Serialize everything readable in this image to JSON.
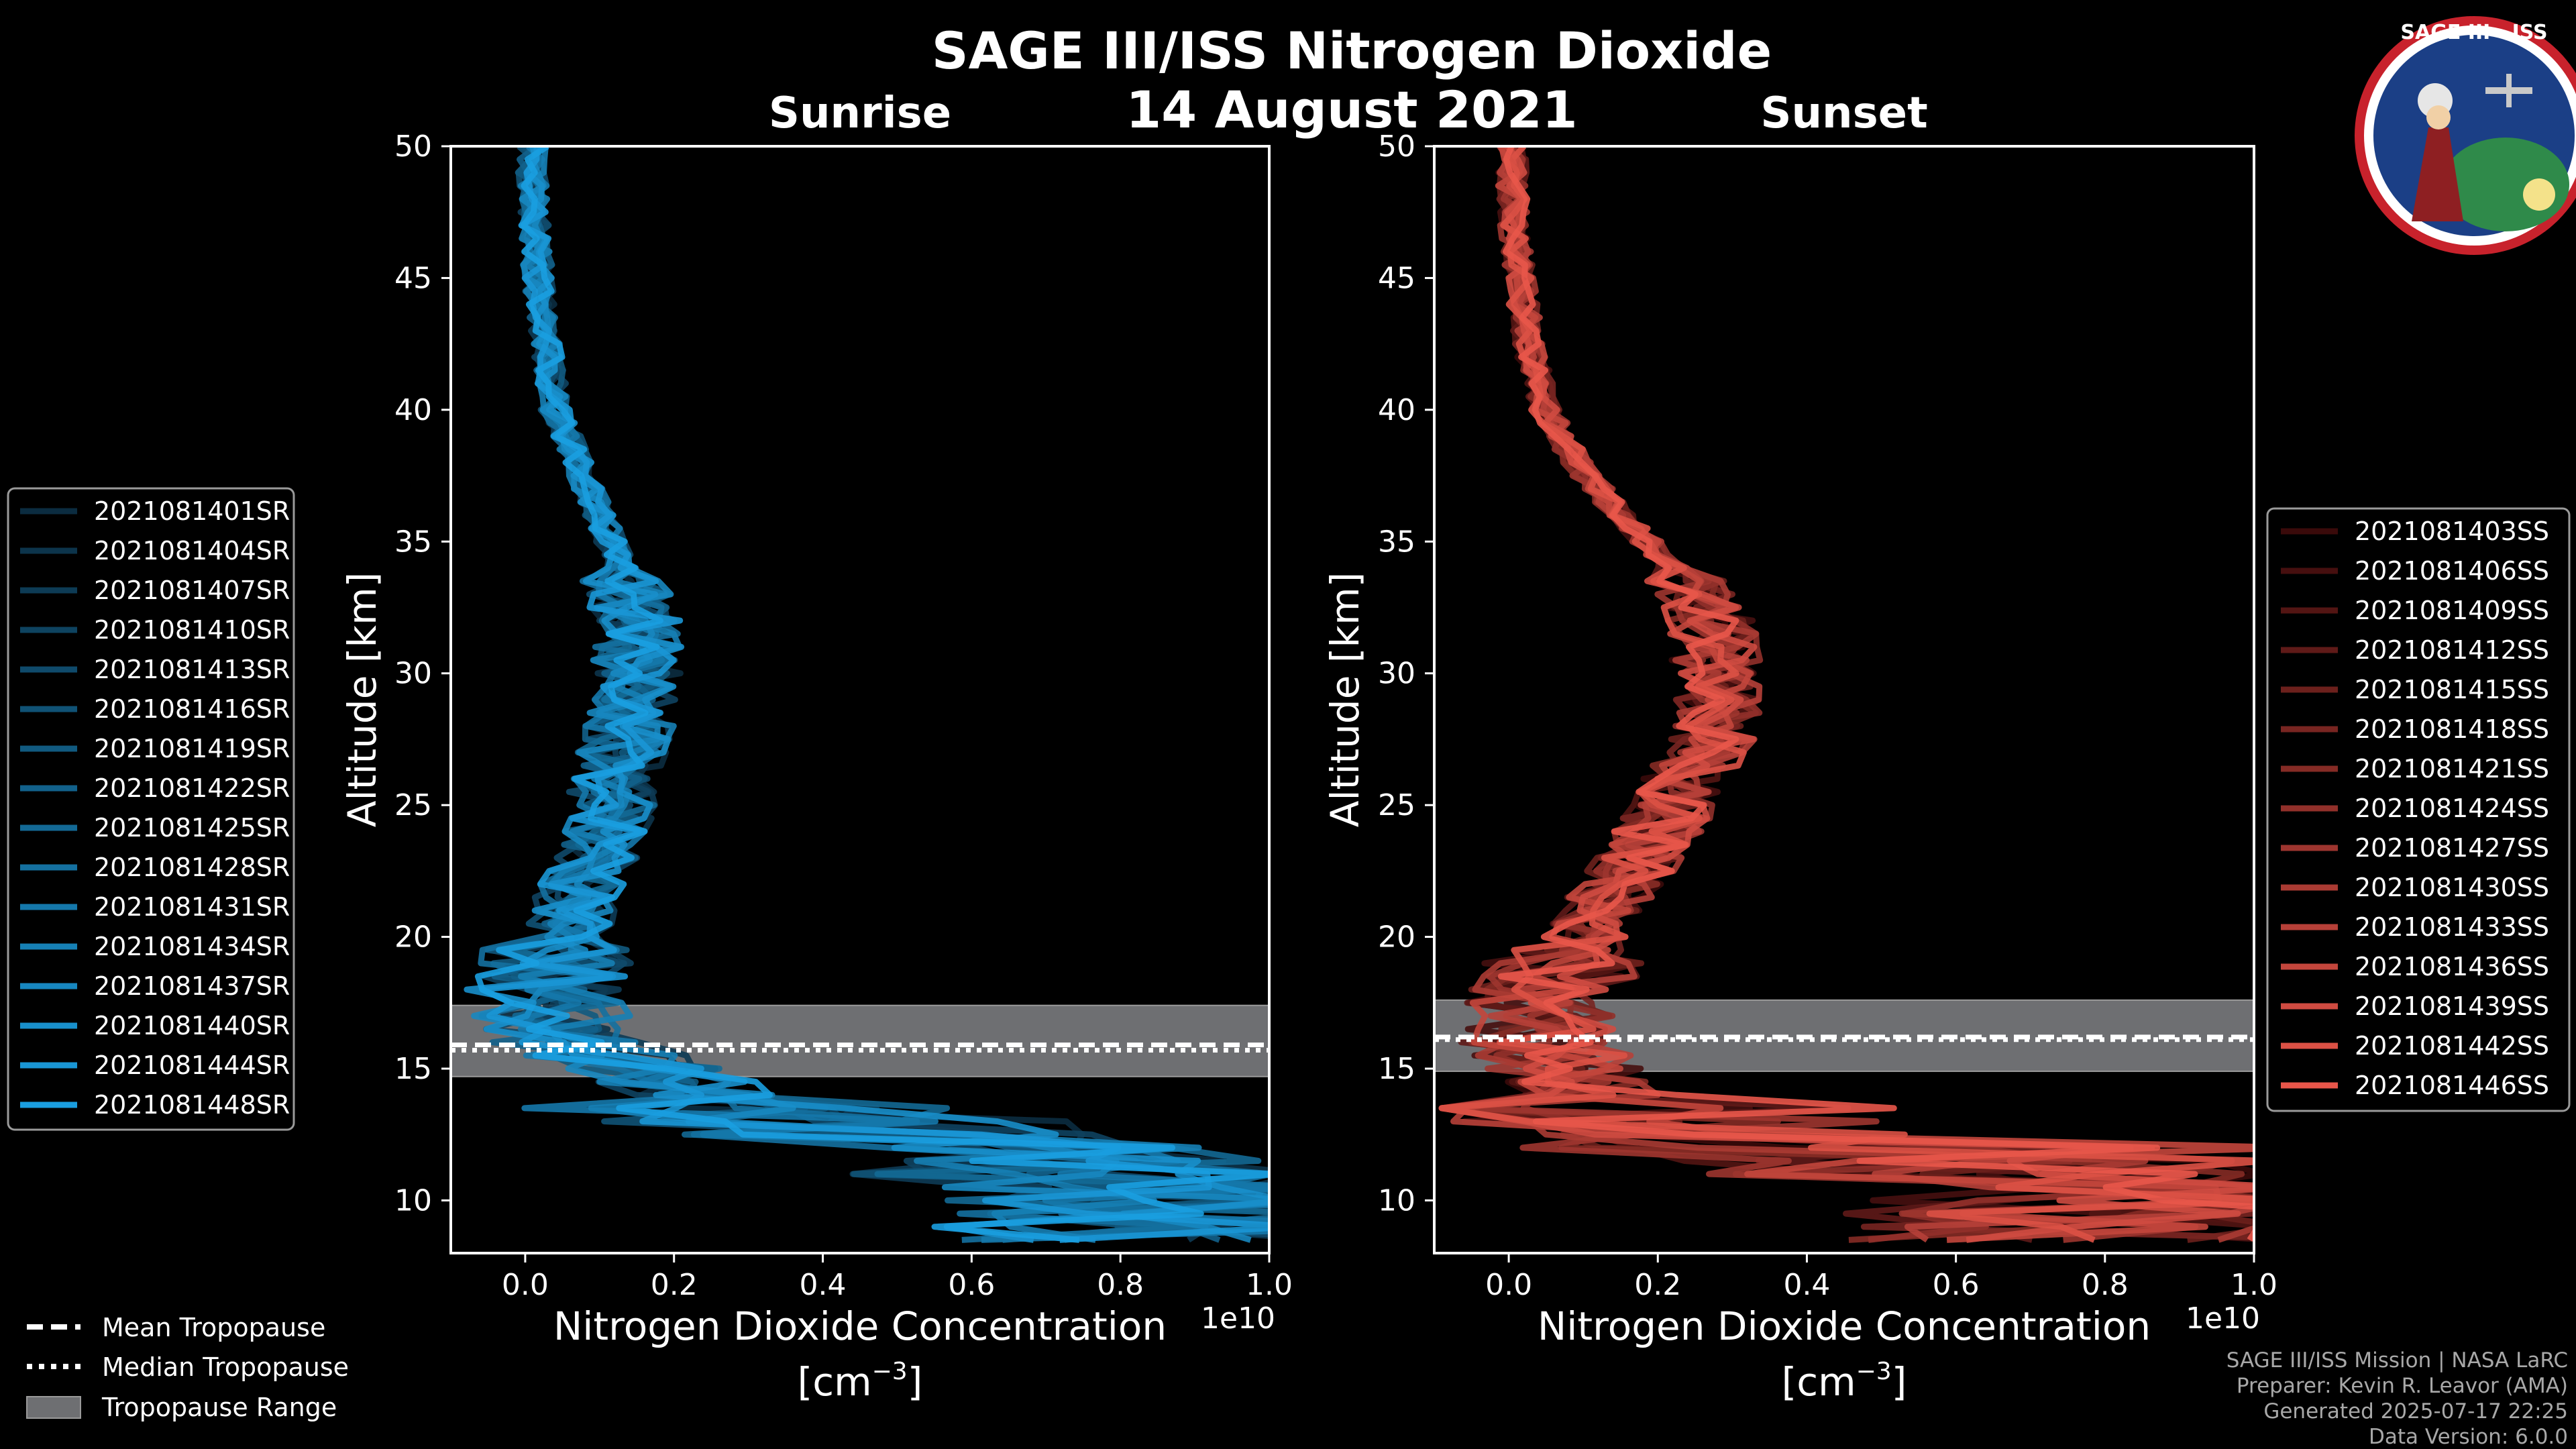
{
  "header": {
    "title": "SAGE III/ISS Nitrogen Dioxide",
    "date": "14 August 2021"
  },
  "badge": {
    "text": "SAGE III · ISS"
  },
  "footer": {
    "mission": "SAGE III/ISS Mission | NASA LaRC",
    "preparer": "Preparer: Kevin R. Leavor (AMA)",
    "generated": "Generated 2025-07-17 22:25",
    "data_version": "Data Version: 6.0.0"
  },
  "tropopause_legend": [
    {
      "label": "Mean Tropopause",
      "style": "dashed"
    },
    {
      "label": "Median Tropopause",
      "style": "dotted"
    },
    {
      "label": "Tropopause Range",
      "style": "patch"
    }
  ],
  "colors": {
    "sunrise": "#1a9ee0",
    "sunset": "#e8564a",
    "tropopause_range": "#6e6f72"
  },
  "chart_data": [
    {
      "type": "line",
      "panel": "sunrise",
      "title": "Sunrise",
      "xlabel_line1": "Nitrogen Dioxide Concentration",
      "xlabel_line2": "[cm",
      "xlabel_sup": "−3",
      "xlabel_close": "]",
      "ylabel": "Altitude [km]",
      "x_scale_label": "1e10",
      "xlim": [
        -0.1,
        1.0
      ],
      "ylim": [
        8,
        50
      ],
      "xticks": [
        "0.0",
        "0.2",
        "0.4",
        "0.6",
        "0.8",
        "1.0"
      ],
      "yticks": [
        "10",
        "15",
        "20",
        "25",
        "30",
        "35",
        "40",
        "45",
        "50"
      ],
      "profile": [
        [
          10,
          0.9
        ],
        [
          12,
          0.6
        ],
        [
          14,
          0.25
        ],
        [
          16,
          0.06
        ],
        [
          18,
          0.02
        ],
        [
          20,
          0.05
        ],
        [
          22,
          0.08
        ],
        [
          24,
          0.11
        ],
        [
          26,
          0.12
        ],
        [
          28,
          0.14
        ],
        [
          30,
          0.15
        ],
        [
          32,
          0.15
        ],
        [
          34,
          0.13
        ],
        [
          36,
          0.1
        ],
        [
          38,
          0.07
        ],
        [
          40,
          0.04
        ],
        [
          42,
          0.03
        ],
        [
          44,
          0.02
        ],
        [
          46,
          0.015
        ],
        [
          48,
          0.01
        ],
        [
          50,
          0.01
        ]
      ],
      "tropopause": {
        "mean": 15.9,
        "median": 15.7,
        "range": [
          14.7,
          17.4
        ]
      },
      "series": [
        {
          "name": "2021081401SR"
        },
        {
          "name": "2021081404SR"
        },
        {
          "name": "2021081407SR"
        },
        {
          "name": "2021081410SR"
        },
        {
          "name": "2021081413SR"
        },
        {
          "name": "2021081416SR"
        },
        {
          "name": "2021081419SR"
        },
        {
          "name": "2021081422SR"
        },
        {
          "name": "2021081425SR"
        },
        {
          "name": "2021081428SR"
        },
        {
          "name": "2021081431SR"
        },
        {
          "name": "2021081434SR"
        },
        {
          "name": "2021081437SR"
        },
        {
          "name": "2021081440SR"
        },
        {
          "name": "2021081444SR"
        },
        {
          "name": "2021081448SR"
        }
      ]
    },
    {
      "type": "line",
      "panel": "sunset",
      "title": "Sunset",
      "xlabel_line1": "Nitrogen Dioxide Concentration",
      "xlabel_line2": "[cm",
      "xlabel_sup": "−3",
      "xlabel_close": "]",
      "ylabel": "Altitude [km]",
      "x_scale_label": "1e10",
      "xlim": [
        -0.1,
        1.0
      ],
      "ylim": [
        8,
        50
      ],
      "xticks": [
        "0.0",
        "0.2",
        "0.4",
        "0.6",
        "0.8",
        "1.0"
      ],
      "yticks": [
        "10",
        "15",
        "20",
        "25",
        "30",
        "35",
        "40",
        "45",
        "50"
      ],
      "profile": [
        [
          10,
          0.8
        ],
        [
          12,
          0.35
        ],
        [
          14,
          0.12
        ],
        [
          16,
          0.04
        ],
        [
          18,
          0.05
        ],
        [
          20,
          0.1
        ],
        [
          22,
          0.15
        ],
        [
          24,
          0.2
        ],
        [
          26,
          0.24
        ],
        [
          28,
          0.28
        ],
        [
          30,
          0.28
        ],
        [
          32,
          0.27
        ],
        [
          34,
          0.22
        ],
        [
          36,
          0.15
        ],
        [
          38,
          0.09
        ],
        [
          40,
          0.05
        ],
        [
          42,
          0.03
        ],
        [
          44,
          0.02
        ],
        [
          46,
          0.01
        ],
        [
          48,
          0.005
        ],
        [
          50,
          0.005
        ]
      ],
      "tropopause": {
        "mean": 16.2,
        "median": 16.1,
        "range": [
          14.9,
          17.6
        ]
      },
      "series": [
        {
          "name": "2021081403SS"
        },
        {
          "name": "2021081406SS"
        },
        {
          "name": "2021081409SS"
        },
        {
          "name": "2021081412SS"
        },
        {
          "name": "2021081415SS"
        },
        {
          "name": "2021081418SS"
        },
        {
          "name": "2021081421SS"
        },
        {
          "name": "2021081424SS"
        },
        {
          "name": "2021081427SS"
        },
        {
          "name": "2021081430SS"
        },
        {
          "name": "2021081433SS"
        },
        {
          "name": "2021081436SS"
        },
        {
          "name": "2021081439SS"
        },
        {
          "name": "2021081442SS"
        },
        {
          "name": "2021081446SS"
        }
      ]
    }
  ]
}
